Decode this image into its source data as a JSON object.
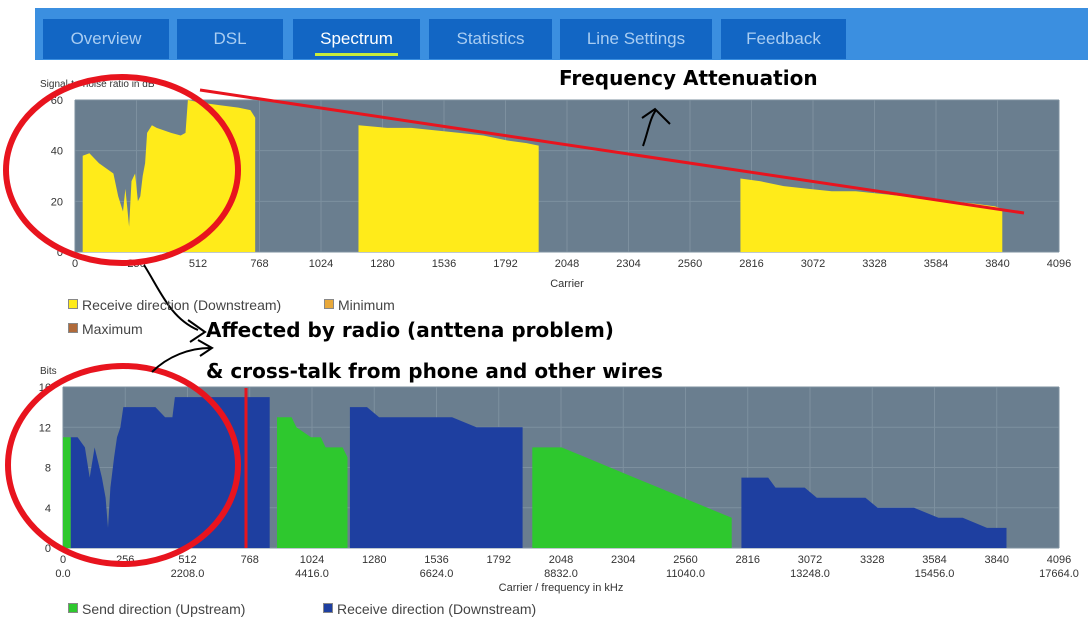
{
  "tabs": [
    {
      "label": "Overview",
      "active": false
    },
    {
      "label": "DSL",
      "active": false
    },
    {
      "label": "Spectrum",
      "active": true
    },
    {
      "label": "Statistics",
      "active": false
    },
    {
      "label": "Line Settings",
      "active": false
    },
    {
      "label": "Feedback",
      "active": false
    }
  ],
  "colors": {
    "plot_bg": "#6a7e8f",
    "downstream_snr": "#ffeb1a",
    "downstream_bits": "#1e3fa0",
    "upstream_bits": "#2ec82e",
    "minimum": "#e8a83a",
    "maximum": "#b06a3a",
    "annotation": "#e8141e",
    "active_tab_underline": "#c8ec3a"
  },
  "annotations": {
    "frequency_attenuation": "Frequency Attenuation",
    "affected_by_radio": "Affected by radio (anttena problem)",
    "cross_talk": "& cross-talk from phone and other wires"
  },
  "legend_snr": [
    {
      "label": "Receive direction (Downstream)",
      "color": "#ffeb1a"
    },
    {
      "label": "Minimum",
      "color": "#e8a83a"
    },
    {
      "label": "Maximum",
      "color": "#b06a3a"
    }
  ],
  "legend_bits": [
    {
      "label": "Send direction (Upstream)",
      "color": "#2ec82e"
    },
    {
      "label": "Receive direction (Downstream)",
      "color": "#1e3fa0"
    }
  ],
  "chart_data": [
    {
      "type": "area",
      "ylabel": "Signal-to-noise ratio in dB",
      "xlabel": "Carrier",
      "xlim": [
        0,
        4096
      ],
      "ylim": [
        0,
        60
      ],
      "x_ticks": [
        0,
        256,
        512,
        768,
        1024,
        1280,
        1536,
        1792,
        2048,
        2304,
        2560,
        2816,
        3072,
        3328,
        3584,
        3840,
        4096
      ],
      "y_ticks": [
        0,
        20,
        40,
        60
      ],
      "grid": true,
      "series": [
        {
          "name": "Receive direction (Downstream)",
          "segments": [
            [
              [
                32,
                38
              ],
              [
                60,
                39
              ],
              [
                100,
                35
              ],
              [
                130,
                33
              ],
              [
                160,
                31
              ],
              [
                180,
                22
              ],
              [
                200,
                16
              ],
              [
                210,
                25
              ],
              [
                225,
                10
              ],
              [
                235,
                28
              ],
              [
                250,
                31
              ],
              [
                262,
                20
              ],
              [
                272,
                22
              ],
              [
                282,
                30
              ],
              [
                292,
                35
              ],
              [
                300,
                47
              ],
              [
                320,
                50
              ],
              [
                340,
                49
              ],
              [
                370,
                48
              ],
              [
                400,
                47
              ],
              [
                440,
                46
              ],
              [
                460,
                47
              ],
              [
                470,
                60
              ],
              [
                520,
                59
              ],
              [
                600,
                58
              ],
              [
                680,
                57
              ],
              [
                730,
                56
              ],
              [
                750,
                53
              ]
            ],
            [
              [
                1180,
                50
              ],
              [
                1300,
                49
              ],
              [
                1400,
                49
              ],
              [
                1500,
                48
              ],
              [
                1600,
                47
              ],
              [
                1700,
                46
              ],
              [
                1800,
                44
              ],
              [
                1880,
                43
              ],
              [
                1930,
                42
              ]
            ],
            [
              [
                2770,
                29
              ],
              [
                2850,
                28
              ],
              [
                2950,
                26
              ],
              [
                3050,
                25
              ],
              [
                3150,
                24
              ],
              [
                3250,
                24
              ],
              [
                3350,
                23
              ],
              [
                3450,
                22
              ],
              [
                3550,
                21
              ],
              [
                3650,
                20
              ],
              [
                3750,
                19
              ],
              [
                3830,
                18
              ],
              [
                3860,
                17
              ]
            ]
          ]
        }
      ]
    },
    {
      "type": "area",
      "ylabel": "Bits",
      "xlabel": "Carrier / frequency in kHz",
      "xlim": [
        0,
        4096
      ],
      "ylim": [
        0,
        16
      ],
      "x_ticks": [
        0,
        256,
        512,
        768,
        1024,
        1280,
        1536,
        1792,
        2048,
        2304,
        2560,
        2816,
        3072,
        3328,
        3584,
        3840,
        4096
      ],
      "x_freq_labels": [
        "0.0",
        "2208.0",
        "4416.0",
        "6624.0",
        "8832.0",
        "11040.0",
        "13248.0",
        "15456.0",
        "17664.0"
      ],
      "y_ticks": [
        0,
        4,
        8,
        12,
        16
      ],
      "grid": true,
      "series": [
        {
          "name": "Send direction (Upstream)",
          "color": "green",
          "segments": [
            [
              [
                0,
                11
              ],
              [
                32,
                11
              ]
            ],
            [
              [
                880,
                13
              ],
              [
                940,
                13
              ],
              [
                960,
                12
              ],
              [
                1020,
                11
              ],
              [
                1060,
                11
              ],
              [
                1080,
                10
              ],
              [
                1150,
                10
              ],
              [
                1170,
                9
              ]
            ],
            [
              [
                1930,
                10
              ],
              [
                2050,
                10
              ],
              [
                2150,
                9
              ],
              [
                2250,
                8
              ],
              [
                2350,
                7
              ],
              [
                2450,
                6
              ],
              [
                2550,
                5
              ],
              [
                2650,
                4
              ],
              [
                2750,
                3
              ]
            ]
          ]
        },
        {
          "name": "Receive direction (Downstream)",
          "color": "blue",
          "segments": [
            [
              [
                32,
                11
              ],
              [
                60,
                11
              ],
              [
                90,
                10
              ],
              [
                110,
                7
              ],
              [
                130,
                10
              ],
              [
                160,
                7
              ],
              [
                175,
                5
              ],
              [
                185,
                2
              ],
              [
                195,
                6
              ],
              [
                210,
                9
              ],
              [
                222,
                11
              ],
              [
                236,
                12
              ],
              [
                248,
                14
              ],
              [
                300,
                14
              ],
              [
                340,
                14
              ],
              [
                380,
                14
              ],
              [
                420,
                13
              ],
              [
                450,
                13
              ],
              [
                460,
                15
              ],
              [
                500,
                15
              ],
              [
                560,
                15
              ],
              [
                640,
                15
              ],
              [
                700,
                15
              ],
              [
                750,
                15
              ],
              [
                800,
                15
              ],
              [
                840,
                15
              ],
              [
                850,
                15
              ]
            ],
            [
              [
                1180,
                14
              ],
              [
                1250,
                14
              ],
              [
                1300,
                13
              ],
              [
                1400,
                13
              ],
              [
                1500,
                13
              ],
              [
                1600,
                13
              ],
              [
                1700,
                12
              ],
              [
                1800,
                12
              ],
              [
                1890,
                12
              ]
            ],
            [
              [
                2790,
                7
              ],
              [
                2900,
                7
              ],
              [
                2930,
                6
              ],
              [
                3050,
                6
              ],
              [
                3100,
                5
              ],
              [
                3200,
                5
              ],
              [
                3300,
                5
              ],
              [
                3350,
                4
              ],
              [
                3500,
                4
              ],
              [
                3600,
                3
              ],
              [
                3700,
                3
              ],
              [
                3800,
                2
              ],
              [
                3880,
                2
              ]
            ]
          ]
        }
      ]
    }
  ]
}
